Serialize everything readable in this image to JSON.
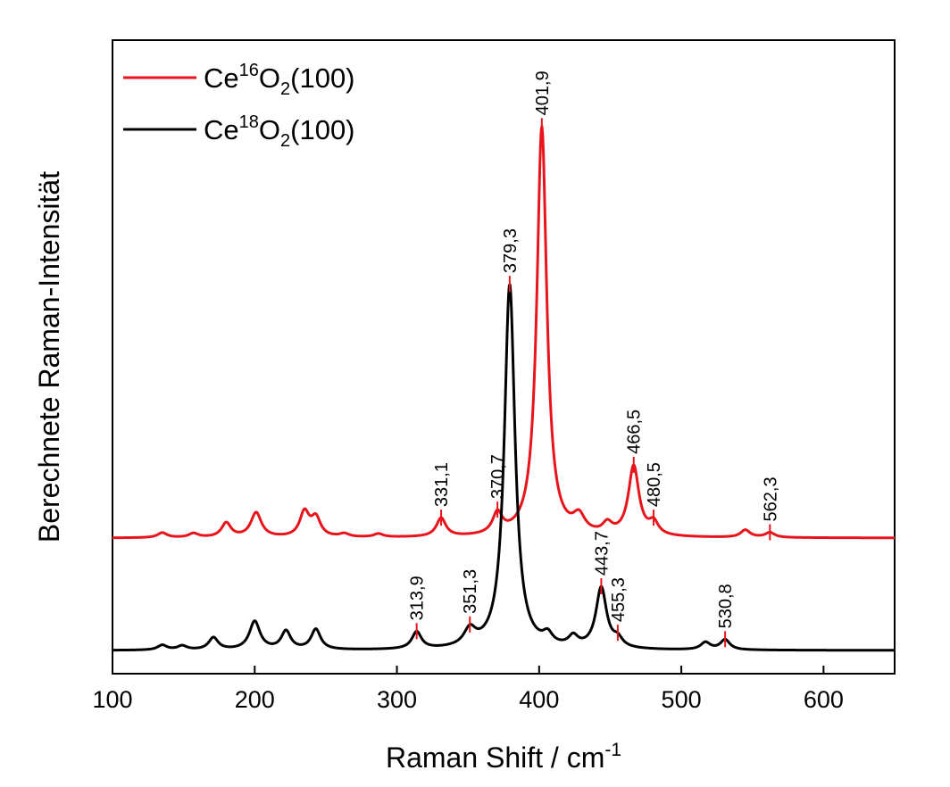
{
  "chart_data": {
    "type": "line",
    "xlabel": "Raman Shift / cm",
    "xlabel_sup": "-1",
    "ylabel": "Berechnete Raman-Intensität",
    "xlim": [
      100,
      650
    ],
    "xticks": [
      "100",
      "200",
      "300",
      "400",
      "500",
      "600"
    ],
    "y_ticks_labeled": false,
    "legend_position": "top-left",
    "series": [
      {
        "name_base": "Ce",
        "name_sup": "16",
        "name_mid": "O",
        "name_sub": "2",
        "name_end": "(100)",
        "color": "#e8141b",
        "y_values_unit": "arbitrary",
        "peaks": [
          {
            "x": 135,
            "h": 0.012,
            "w": 4
          },
          {
            "x": 157,
            "h": 0.01,
            "w": 4
          },
          {
            "x": 180,
            "h": 0.035,
            "w": 4
          },
          {
            "x": 201,
            "h": 0.06,
            "w": 4.5
          },
          {
            "x": 235,
            "h": 0.06,
            "w": 4
          },
          {
            "x": 243,
            "h": 0.045,
            "w": 4
          },
          {
            "x": 263,
            "h": 0.008,
            "w": 4
          },
          {
            "x": 287,
            "h": 0.008,
            "w": 4
          },
          {
            "x": 331.1,
            "h": 0.045,
            "w": 4
          },
          {
            "x": 370.7,
            "h": 0.05,
            "w": 4
          },
          {
            "x": 401.9,
            "h": 1.0,
            "w": 4.2
          },
          {
            "x": 428,
            "h": 0.04,
            "w": 5
          },
          {
            "x": 448,
            "h": 0.025,
            "w": 4
          },
          {
            "x": 466.5,
            "h": 0.17,
            "w": 4.5
          },
          {
            "x": 480.5,
            "h": 0.03,
            "w": 4
          },
          {
            "x": 545,
            "h": 0.018,
            "w": 4
          },
          {
            "x": 562.3,
            "h": 0.012,
            "w": 4
          }
        ],
        "labeled_peaks": [
          "331,1",
          "370,7",
          "401,9",
          "466,5",
          "480,5",
          "562,3"
        ],
        "labeled_peak_x": [
          331.1,
          370.7,
          401.9,
          466.5,
          480.5,
          562.3
        ]
      },
      {
        "name_base": "Ce",
        "name_sup": "18",
        "name_mid": "O",
        "name_sub": "2",
        "name_end": "(100)",
        "color": "#000000",
        "y_values_unit": "arbitrary",
        "peaks": [
          {
            "x": 135,
            "h": 0.012,
            "w": 4
          },
          {
            "x": 149,
            "h": 0.01,
            "w": 4
          },
          {
            "x": 171,
            "h": 0.03,
            "w": 4
          },
          {
            "x": 200,
            "h": 0.07,
            "w": 4.5
          },
          {
            "x": 222,
            "h": 0.045,
            "w": 4
          },
          {
            "x": 243,
            "h": 0.05,
            "w": 4
          },
          {
            "x": 313.9,
            "h": 0.042,
            "w": 4
          },
          {
            "x": 351.3,
            "h": 0.04,
            "w": 5
          },
          {
            "x": 379.3,
            "h": 0.9,
            "w": 4.5
          },
          {
            "x": 406,
            "h": 0.025,
            "w": 4
          },
          {
            "x": 424,
            "h": 0.025,
            "w": 4
          },
          {
            "x": 443.7,
            "h": 0.15,
            "w": 4.5
          },
          {
            "x": 455.3,
            "h": 0.02,
            "w": 4
          },
          {
            "x": 517,
            "h": 0.018,
            "w": 4
          },
          {
            "x": 530.8,
            "h": 0.025,
            "w": 4
          }
        ],
        "labeled_peaks": [
          "313,9",
          "351,3",
          "379,3",
          "443,7",
          "455,3",
          "530,8"
        ],
        "labeled_peak_x": [
          313.9,
          351.3,
          379.3,
          443.7,
          455.3,
          530.8
        ]
      }
    ]
  }
}
